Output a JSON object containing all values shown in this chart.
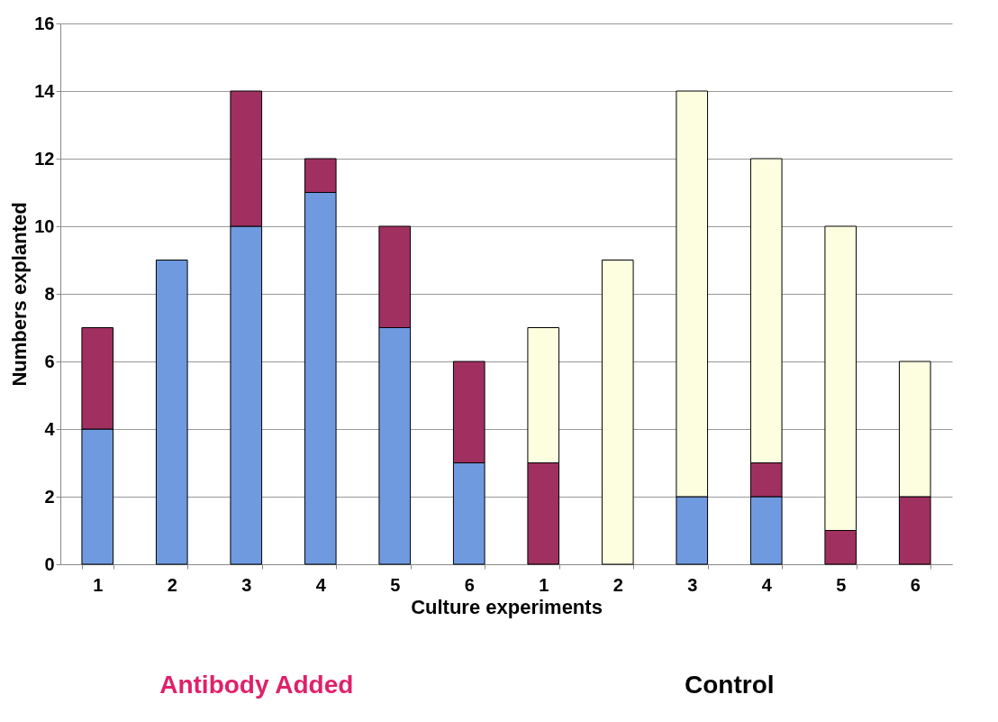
{
  "chart_data": {
    "type": "bar",
    "xlabel": "Culture experiments",
    "ylabel": "Numbers explanted",
    "categories": [
      "1",
      "2",
      "3",
      "4",
      "5",
      "6",
      "1",
      "2",
      "3",
      "4",
      "5",
      "6"
    ],
    "stacked": true,
    "series": [
      {
        "color": "#6f9ae0",
        "values": [
          4,
          9,
          10,
          11,
          7,
          3,
          0,
          0,
          2,
          2,
          0,
          0
        ]
      },
      {
        "color": "#a03060",
        "values": [
          3,
          0,
          4,
          1,
          3,
          3,
          3,
          0,
          0,
          1,
          1,
          2
        ]
      },
      {
        "color": "#fdfde0",
        "values": [
          0,
          0,
          0,
          0,
          0,
          0,
          4,
          9,
          12,
          9,
          9,
          4
        ]
      }
    ],
    "ylim": [
      0,
      16
    ],
    "yticks": [
      0,
      2,
      4,
      6,
      8,
      10,
      12,
      14,
      16
    ],
    "grid": "y",
    "legend": false,
    "annotations": [
      "Antibody Added",
      "Control"
    ]
  }
}
